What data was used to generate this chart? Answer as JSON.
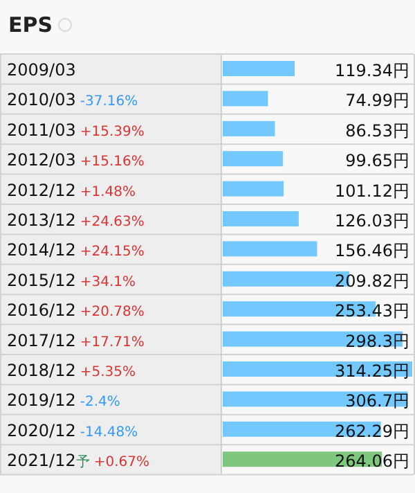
{
  "chart_data": {
    "type": "bar",
    "orientation": "horizontal",
    "title": "EPS",
    "categories": [
      "2009/03",
      "2010/03 -37.16%",
      "2011/03 +15.39%",
      "2012/03 +15.16%",
      "2012/12 +1.48%",
      "2013/12 +24.63%",
      "2014/12 +24.15%",
      "2015/12 +34.1%",
      "2016/12 +20.78%",
      "2017/12 +17.71%",
      "2018/12 +5.35%",
      "2019/12 -2.4%",
      "2020/12 -14.48%",
      "2021/12予 +0.67%"
    ],
    "values": [
      119.34,
      74.99,
      86.53,
      99.65,
      101.12,
      126.03,
      156.46,
      209.82,
      253.43,
      298.3,
      314.25,
      306.7,
      262.29,
      264.06
    ],
    "value_labels": [
      "119.34円",
      "74.99円",
      "86.53円",
      "99.65円",
      "101.12円",
      "126.03円",
      "156.46円",
      "209.82円",
      "253.43円",
      "298.3円",
      "314.25円",
      "306.7円",
      "262.29円",
      "264.06円"
    ],
    "colors": [
      "#73c8ff",
      "#73c8ff",
      "#73c8ff",
      "#73c8ff",
      "#73c8ff",
      "#73c8ff",
      "#73c8ff",
      "#73c8ff",
      "#73c8ff",
      "#73c8ff",
      "#73c8ff",
      "#73c8ff",
      "#73c8ff",
      "#7fc77f"
    ],
    "xlim": [
      0,
      314.25
    ]
  }
}
